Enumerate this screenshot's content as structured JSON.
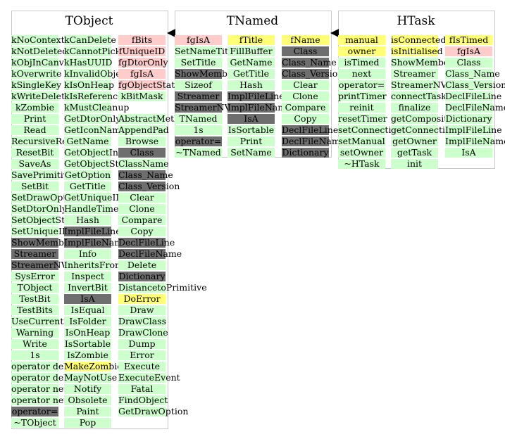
{
  "classes": [
    {
      "title": "TObject",
      "columns": [
        [
          {
            "t": "kNoContextMenu",
            "c": "green"
          },
          {
            "t": "kNotDeleted",
            "c": "green"
          },
          {
            "t": "kObjInCanvas",
            "c": "green"
          },
          {
            "t": "kOverwrite",
            "c": "green"
          },
          {
            "t": "kSingleKey",
            "c": "green"
          },
          {
            "t": "kWriteDelete",
            "c": "green"
          },
          {
            "t": "kZombie",
            "c": "green"
          },
          {
            "t": "Print",
            "c": "green"
          },
          {
            "t": "Read",
            "c": "green"
          },
          {
            "t": "RecursiveRemove",
            "c": "green"
          },
          {
            "t": "ResetBit",
            "c": "green"
          },
          {
            "t": "SaveAs",
            "c": "green"
          },
          {
            "t": "SavePrimitive",
            "c": "green"
          },
          {
            "t": "SetBit",
            "c": "green"
          },
          {
            "t": "SetDrawOption",
            "c": "green"
          },
          {
            "t": "SetDtorOnly",
            "c": "green"
          },
          {
            "t": "SetObjectStat",
            "c": "green"
          },
          {
            "t": "SetUniqueID",
            "c": "green"
          },
          {
            "t": "ShowMembers",
            "c": "grey"
          },
          {
            "t": "Streamer",
            "c": "grey"
          },
          {
            "t": "StreamerNVirtual",
            "c": "grey"
          },
          {
            "t": "SysError",
            "c": "green"
          },
          {
            "t": "TObject",
            "c": "green"
          },
          {
            "t": "TestBit",
            "c": "green"
          },
          {
            "t": "TestBits",
            "c": "green"
          },
          {
            "t": "UseCurrentStyle",
            "c": "green"
          },
          {
            "t": "Warning",
            "c": "green"
          },
          {
            "t": "Write",
            "c": "green"
          },
          {
            "t": "1s",
            "c": "green"
          },
          {
            "t": "operator delete",
            "c": "green"
          },
          {
            "t": "operator delete[]",
            "c": "green"
          },
          {
            "t": "operator new",
            "c": "green"
          },
          {
            "t": "operator new[]",
            "c": "green"
          },
          {
            "t": "operator=",
            "c": "grey"
          },
          {
            "t": "~TObject",
            "c": "green"
          }
        ],
        [
          {
            "t": "kCanDelete",
            "c": "green"
          },
          {
            "t": "kCannotPick",
            "c": "green"
          },
          {
            "t": "kHasUUID",
            "c": "green"
          },
          {
            "t": "kInvalidObject",
            "c": "green"
          },
          {
            "t": "kIsOnHeap",
            "c": "green"
          },
          {
            "t": "kIsReferenced",
            "c": "green"
          },
          {
            "t": "kMustCleanup",
            "c": "green"
          },
          {
            "t": "GetDtorOnly",
            "c": "green"
          },
          {
            "t": "GetIconName",
            "c": "green"
          },
          {
            "t": "GetName",
            "c": "green"
          },
          {
            "t": "GetObjectInfo",
            "c": "green"
          },
          {
            "t": "GetObjectStat",
            "c": "green"
          },
          {
            "t": "GetOption",
            "c": "green"
          },
          {
            "t": "GetTitle",
            "c": "green"
          },
          {
            "t": "GetUniqueID",
            "c": "green"
          },
          {
            "t": "HandleTimer",
            "c": "green"
          },
          {
            "t": "Hash",
            "c": "green"
          },
          {
            "t": "ImplFileLine",
            "c": "grey"
          },
          {
            "t": "ImplFileName",
            "c": "grey"
          },
          {
            "t": "Info",
            "c": "green"
          },
          {
            "t": "InheritsFrom",
            "c": "green"
          },
          {
            "t": "Inspect",
            "c": "green"
          },
          {
            "t": "InvertBit",
            "c": "green"
          },
          {
            "t": "IsA",
            "c": "grey"
          },
          {
            "t": "IsEqual",
            "c": "green"
          },
          {
            "t": "IsFolder",
            "c": "green"
          },
          {
            "t": "IsOnHeap",
            "c": "green"
          },
          {
            "t": "IsSortable",
            "c": "green"
          },
          {
            "t": "IsZombie",
            "c": "green"
          },
          {
            "t": "MakeZombie",
            "c": "yellow"
          },
          {
            "t": "MayNotUse",
            "c": "green"
          },
          {
            "t": "Notify",
            "c": "green"
          },
          {
            "t": "Obsolete",
            "c": "green"
          },
          {
            "t": "Paint",
            "c": "green"
          },
          {
            "t": "Pop",
            "c": "green"
          }
        ],
        [
          {
            "t": "fBits",
            "c": "pink"
          },
          {
            "t": "fUniqueID",
            "c": "pink"
          },
          {
            "t": "fgDtorOnly",
            "c": "pink"
          },
          {
            "t": "fgIsA",
            "c": "pink"
          },
          {
            "t": "fgObjectStat",
            "c": "pink"
          },
          {
            "t": "kBitMask",
            "c": "green"
          },
          {
            "t": "",
            "c": "none"
          },
          {
            "t": "AbstractMethod",
            "c": "green"
          },
          {
            "t": "AppendPad",
            "c": "green"
          },
          {
            "t": "Browse",
            "c": "green"
          },
          {
            "t": "Class",
            "c": "grey"
          },
          {
            "t": "ClassName",
            "c": "green"
          },
          {
            "t": "Class_Name",
            "c": "grey"
          },
          {
            "t": "Class_Version",
            "c": "grey"
          },
          {
            "t": "Clear",
            "c": "green"
          },
          {
            "t": "Clone",
            "c": "green"
          },
          {
            "t": "Compare",
            "c": "green"
          },
          {
            "t": "Copy",
            "c": "green"
          },
          {
            "t": "DeclFileLine",
            "c": "grey"
          },
          {
            "t": "DeclFileName",
            "c": "grey"
          },
          {
            "t": "Delete",
            "c": "green"
          },
          {
            "t": "Dictionary",
            "c": "grey"
          },
          {
            "t": "DistancetoPrimitive",
            "c": "green"
          },
          {
            "t": "DoError",
            "c": "yellow"
          },
          {
            "t": "Draw",
            "c": "green"
          },
          {
            "t": "DrawClass",
            "c": "green"
          },
          {
            "t": "DrawClone",
            "c": "green"
          },
          {
            "t": "Dump",
            "c": "green"
          },
          {
            "t": "Error",
            "c": "green"
          },
          {
            "t": "Execute",
            "c": "green"
          },
          {
            "t": "ExecuteEvent",
            "c": "green"
          },
          {
            "t": "Fatal",
            "c": "green"
          },
          {
            "t": "FindObject",
            "c": "green"
          },
          {
            "t": "GetDrawOption",
            "c": "green"
          }
        ]
      ]
    },
    {
      "title": "TNamed",
      "columns": [
        [
          {
            "t": "fgIsA",
            "c": "pink"
          },
          {
            "t": "SetNameTitle",
            "c": "green"
          },
          {
            "t": "SetTitle",
            "c": "green"
          },
          {
            "t": "ShowMembers",
            "c": "grey"
          },
          {
            "t": "Sizeof",
            "c": "green"
          },
          {
            "t": "Streamer",
            "c": "grey"
          },
          {
            "t": "StreamerNVirtual",
            "c": "grey"
          },
          {
            "t": "TNamed",
            "c": "green"
          },
          {
            "t": "1s",
            "c": "green"
          },
          {
            "t": "operator=",
            "c": "grey"
          },
          {
            "t": "~TNamed",
            "c": "green"
          }
        ],
        [
          {
            "t": "fTitle",
            "c": "yellow"
          },
          {
            "t": "FillBuffer",
            "c": "green"
          },
          {
            "t": "GetName",
            "c": "green"
          },
          {
            "t": "GetTitle",
            "c": "green"
          },
          {
            "t": "Hash",
            "c": "green"
          },
          {
            "t": "ImplFileLine",
            "c": "grey"
          },
          {
            "t": "ImplFileName",
            "c": "grey"
          },
          {
            "t": "IsA",
            "c": "grey"
          },
          {
            "t": "IsSortable",
            "c": "green"
          },
          {
            "t": "Print",
            "c": "green"
          },
          {
            "t": "SetName",
            "c": "green"
          }
        ],
        [
          {
            "t": "fName",
            "c": "yellow"
          },
          {
            "t": "Class",
            "c": "grey"
          },
          {
            "t": "Class_Name",
            "c": "grey"
          },
          {
            "t": "Class_Version",
            "c": "grey"
          },
          {
            "t": "Clear",
            "c": "green"
          },
          {
            "t": "Clone",
            "c": "green"
          },
          {
            "t": "Compare",
            "c": "green"
          },
          {
            "t": "Copy",
            "c": "green"
          },
          {
            "t": "DeclFileLine",
            "c": "grey"
          },
          {
            "t": "DeclFileName",
            "c": "grey"
          },
          {
            "t": "Dictionary",
            "c": "grey"
          }
        ]
      ]
    },
    {
      "title": "HTask",
      "columns": [
        [
          {
            "t": "manual",
            "c": "yellow"
          },
          {
            "t": "owner",
            "c": "yellow"
          },
          {
            "t": "isTimed",
            "c": "green"
          },
          {
            "t": "next",
            "c": "green"
          },
          {
            "t": "operator=",
            "c": "green"
          },
          {
            "t": "printTimer",
            "c": "green"
          },
          {
            "t": "reinit",
            "c": "green"
          },
          {
            "t": "resetTimer",
            "c": "green"
          },
          {
            "t": "setConnections",
            "c": "green"
          },
          {
            "t": "setManual",
            "c": "green"
          },
          {
            "t": "setOwner",
            "c": "green"
          },
          {
            "t": "~HTask",
            "c": "green"
          }
        ],
        [
          {
            "t": "isConnected",
            "c": "yellow"
          },
          {
            "t": "isInitialised",
            "c": "yellow"
          },
          {
            "t": "ShowMembers",
            "c": "green"
          },
          {
            "t": "Streamer",
            "c": "green"
          },
          {
            "t": "StreamerNVirtual",
            "c": "green"
          },
          {
            "t": "connectTask",
            "c": "green"
          },
          {
            "t": "finalize",
            "c": "green"
          },
          {
            "t": "getComposite",
            "c": "green"
          },
          {
            "t": "getConnections",
            "c": "green"
          },
          {
            "t": "getOwner",
            "c": "green"
          },
          {
            "t": "getTask",
            "c": "green"
          },
          {
            "t": "init",
            "c": "green"
          }
        ],
        [
          {
            "t": "fIsTimed",
            "c": "yellow"
          },
          {
            "t": "fgIsA",
            "c": "pink"
          },
          {
            "t": "Class",
            "c": "green"
          },
          {
            "t": "Class_Name",
            "c": "green"
          },
          {
            "t": "Class_Version",
            "c": "green"
          },
          {
            "t": "DeclFileLine",
            "c": "green"
          },
          {
            "t": "DeclFileName",
            "c": "green"
          },
          {
            "t": "Dictionary",
            "c": "green"
          },
          {
            "t": "ImplFileLine",
            "c": "green"
          },
          {
            "t": "ImplFileName",
            "c": "green"
          },
          {
            "t": "IsA",
            "c": "green"
          }
        ]
      ]
    }
  ]
}
